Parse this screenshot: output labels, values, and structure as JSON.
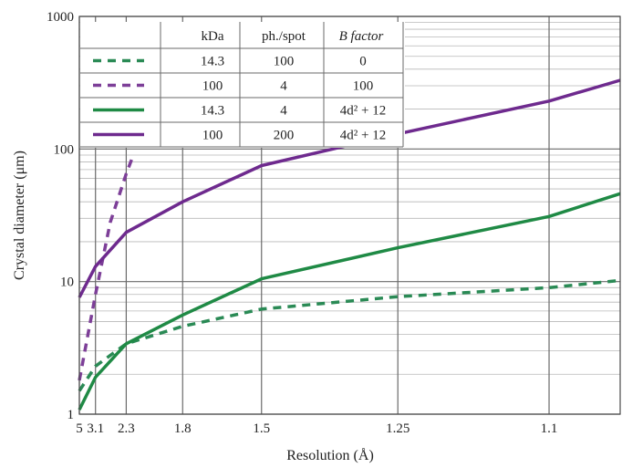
{
  "chart_data": {
    "type": "line",
    "xlabel": "Resolution (Å)",
    "ylabel": "Crystal diameter (μm)",
    "y_scale": "log",
    "x_scale": "reciprocal-cubed",
    "xlim": [
      5,
      1.05
    ],
    "ylim": [
      1,
      1000
    ],
    "x_ticks": [
      5,
      3.1,
      2.3,
      1.8,
      1.5,
      1.25,
      1.1
    ],
    "x_tick_labels": [
      "5",
      "3.1",
      "2.3",
      "1.8",
      "1.5",
      "1.25",
      "1.1"
    ],
    "y_ticks": [
      1,
      10,
      100,
      1000
    ],
    "y_tick_labels": [
      "1",
      "10",
      "100",
      "1000"
    ],
    "grid": true,
    "legend_table": {
      "headers": [
        "",
        "kDa",
        "ph./spot",
        "B factor"
      ],
      "rows": [
        {
          "kda": "14.3",
          "ph_spot": "100",
          "b_factor": "0"
        },
        {
          "kda": "100",
          "ph_spot": "4",
          "b_factor": "100"
        },
        {
          "kda": "14.3",
          "ph_spot": "4",
          "b_factor": "4d² + 12"
        },
        {
          "kda": "100",
          "ph_spot": "200",
          "b_factor": "4d² + 12"
        }
      ]
    },
    "series": [
      {
        "color": "#2a8a55",
        "dash": true,
        "points": [
          [
            5,
            1.5
          ],
          [
            3.1,
            2.3
          ],
          [
            2.3,
            3.4
          ],
          [
            1.8,
            4.6
          ],
          [
            1.5,
            6.2
          ],
          [
            1.25,
            7.7
          ],
          [
            1.1,
            9.0
          ],
          [
            1.05,
            10.2
          ]
        ]
      },
      {
        "color": "#7d3f98",
        "dash": true,
        "points": [
          [
            5,
            1.8
          ],
          [
            3.1,
            8.0
          ],
          [
            2.6,
            28
          ],
          [
            2.3,
            65
          ],
          [
            2.22,
            85
          ]
        ]
      },
      {
        "color": "#1f8a45",
        "dash": false,
        "points": [
          [
            5,
            1.08
          ],
          [
            3.1,
            1.9
          ],
          [
            2.3,
            3.4
          ],
          [
            1.8,
            5.6
          ],
          [
            1.5,
            10.5
          ],
          [
            1.25,
            18
          ],
          [
            1.1,
            31
          ],
          [
            1.05,
            46
          ]
        ]
      },
      {
        "color": "#6e2a8e",
        "dash": false,
        "points": [
          [
            5,
            7.6
          ],
          [
            3.1,
            13
          ],
          [
            2.3,
            23.5
          ],
          [
            1.8,
            40
          ],
          [
            1.5,
            75
          ],
          [
            1.25,
            130
          ],
          [
            1.1,
            230
          ],
          [
            1.05,
            330
          ]
        ]
      }
    ]
  }
}
